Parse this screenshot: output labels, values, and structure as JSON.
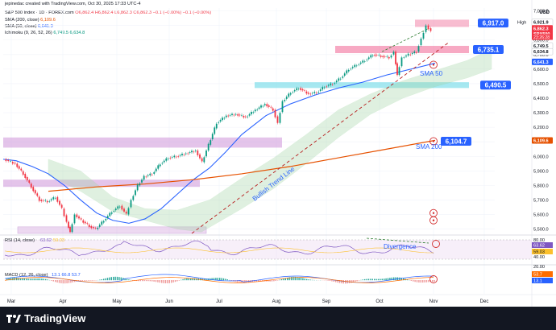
{
  "header": {
    "credit": "jepinedac created with TradingView.com, Oct 30, 2025 17:33 UTC-4",
    "symbol": "S&P 500 Index · 1D · FOREX.com",
    "ohlc": "O6,862.4  H6,862.4  L6,862.3  C6,862.3  −0.1 (−0.00%)  −0.1 (−0.00%)",
    "sma200": "SMA (200, close)",
    "sma200_val": "6,109.6",
    "sma50": "SMA (50, close)",
    "sma50_val": "6,641.3",
    "ichimoku": "Ichimoku (9, 26, 52, 26)",
    "ichimoku_vals": "6,749.5  6,634.8",
    "currency": "USD"
  },
  "price_axis": {
    "labels": [
      "7,000.0",
      "6,900.0",
      "6,800.0",
      "6,700.0",
      "6,600.0",
      "6,500.0",
      "6,400.0",
      "6,300.0",
      "6,200.0",
      "6,100.0",
      "6,000.0",
      "5,900.0",
      "5,800.0",
      "5,700.0",
      "5,600.0",
      "5,500.0"
    ],
    "badges": [
      {
        "text": "6,921.9",
        "color": "#ffffff",
        "text_color": "#131722",
        "prefix": "High"
      },
      {
        "text": "6,862.3",
        "color": "#f23645",
        "text_color": "#ffffff"
      },
      {
        "text": "SPX500",
        "color": "#f23645",
        "text_color": "#ffffff"
      },
      {
        "text": "6,749.5",
        "color": "#ffffff",
        "text_color": "#131722"
      },
      {
        "text": "6,634.8",
        "color": "#ffffff",
        "text_color": "#131722"
      },
      {
        "text": "6,641.3",
        "color": "#2962ff",
        "text_color": "#ffffff"
      },
      {
        "text": "6,109.6",
        "color": "#e65100",
        "text_color": "#ffffff"
      }
    ],
    "countdown": "23:26:28"
  },
  "time_axis": [
    "Mar",
    "Apr",
    "May",
    "Jun",
    "Jul",
    "Aug",
    "Sep",
    "Oct",
    "Nov",
    "Dec"
  ],
  "annotations": {
    "level_6917": "6,917.0",
    "level_6735": "6,735.1",
    "level_6490": "6,490.5",
    "level_6104": "6,104.7",
    "sma50_label": "SMA 50",
    "sma200_label": "SMA 200",
    "trend_label": "Bullish Trend Line",
    "divergence_label": "Divergence"
  },
  "rsi": {
    "title": "RSI (14, close)",
    "val1": "63.62",
    "val2": "59.03",
    "axis": [
      "80.00",
      "40.00"
    ],
    "badges": [
      "63.62",
      "59.03"
    ]
  },
  "macd": {
    "title": "MACD (12, 26, close)",
    "vals": "13.1  66.8  53.7",
    "axis": [
      "20.00"
    ],
    "badges": [
      "53.7",
      "13.1"
    ]
  },
  "footer": {
    "brand": "TradingView"
  },
  "chart_data": {
    "type": "line",
    "title": "",
    "series": [
      {
        "name": "S&P 500 Index",
        "x": [
          "Mar",
          "Apr",
          "May",
          "Jun",
          "Jul",
          "Aug",
          "Sep",
          "Oct",
          "Nov"
        ],
        "values": [
          5900,
          5500,
          5650,
          5950,
          6250,
          6380,
          6500,
          6720,
          6862
        ]
      },
      {
        "name": "SMA (50, close)",
        "x": [
          "Mar",
          "Apr",
          "May",
          "Jun",
          "Jul",
          "Aug",
          "Sep",
          "Oct",
          "Nov"
        ],
        "values": [
          5940,
          5730,
          5550,
          5720,
          6000,
          6230,
          6420,
          6590,
          6641
        ]
      },
      {
        "name": "SMA (200, close)",
        "x": [
          "Mar",
          "Apr",
          "May",
          "Jun",
          "Jul",
          "Aug",
          "Sep",
          "Oct",
          "Nov"
        ],
        "values": [
          5760,
          5800,
          5830,
          5860,
          5900,
          5950,
          6000,
          6060,
          6110
        ]
      }
    ],
    "ylim": [
      5470,
      7020
    ],
    "levels": [
      6917.0,
      6735.1,
      6490.5,
      6104.7
    ]
  }
}
